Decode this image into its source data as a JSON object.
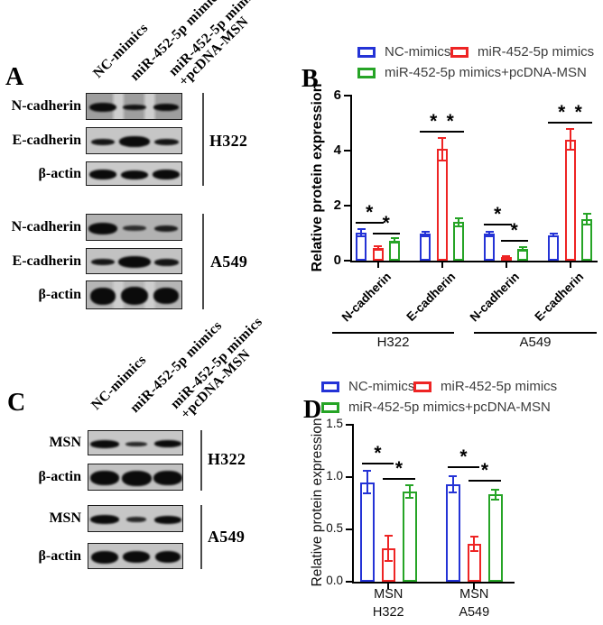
{
  "colors": {
    "nc_blue": "#2433d6",
    "mir_red": "#ee2424",
    "msn_green": "#26a426",
    "axis_black": "#000000",
    "legend_text_gray": "#3d3d3d"
  },
  "blot_panels": [
    {
      "letter": "A",
      "lane_labels": [
        "NC-mimics",
        "miR-452-5p mimics",
        "miR-452-5p mimics\n+pcDNA-MSN"
      ],
      "groups": [
        {
          "cell_line": "H322",
          "rows": [
            {
              "protein": "N-cadherin",
              "bg": "#9e9e9e",
              "streaks": true,
              "bands": [
                [
                  30,
                  10,
                  1
                ],
                [
                  26,
                  6,
                  0.95
                ],
                [
                  28,
                  8,
                  1
                ]
              ]
            },
            {
              "protein": "E-cadherin",
              "bg": "#c6c6c6",
              "streaks": false,
              "bands": [
                [
                  26,
                  7,
                  0.95
                ],
                [
                  34,
                  12,
                  1
                ],
                [
                  27,
                  7,
                  0.95
                ]
              ]
            },
            {
              "protein": "β-actin",
              "bg": "#cacaca",
              "streaks": false,
              "bands": [
                [
                  30,
                  11,
                  1
                ],
                [
                  30,
                  10,
                  1
                ],
                [
                  30,
                  11,
                  1
                ]
              ]
            }
          ]
        },
        {
          "cell_line": "A549",
          "rows": [
            {
              "protein": "N-cadherin",
              "bg": "#b2b2b2",
              "streaks": false,
              "bands": [
                [
                  32,
                  13,
                  1
                ],
                [
                  26,
                  6,
                  0.8
                ],
                [
                  26,
                  7,
                  0.9
                ]
              ]
            },
            {
              "protein": "E-cadherin",
              "bg": "#c2c2c2",
              "streaks": false,
              "bands": [
                [
                  26,
                  7,
                  0.95
                ],
                [
                  36,
                  13,
                  1
                ],
                [
                  27,
                  8,
                  0.95
                ]
              ]
            },
            {
              "protein": "β-actin",
              "bg": "#b6b6b6",
              "streaks": true,
              "bands": [
                [
                  28,
                  19,
                  1
                ],
                [
                  30,
                  20,
                  1
                ],
                [
                  28,
                  18,
                  1
                ]
              ]
            }
          ]
        }
      ]
    },
    {
      "letter": "C",
      "lane_labels": [
        "NC-mimics",
        "miR-452-5p mimics",
        "miR-452-5p mimics\n+pcDNA-MSN"
      ],
      "groups": [
        {
          "cell_line": "H322",
          "rows": [
            {
              "protein": "MSN",
              "bg": "#c6c6c6",
              "streaks": false,
              "bands": [
                [
                  32,
                  9,
                  1
                ],
                [
                  24,
                  5,
                  0.85
                ],
                [
                  30,
                  8,
                  1
                ]
              ]
            },
            {
              "protein": "β-actin",
              "bg": "#c2c2c2",
              "streaks": false,
              "bands": [
                [
                  32,
                  16,
                  1
                ],
                [
                  33,
                  17,
                  1
                ],
                [
                  32,
                  16,
                  1
                ]
              ]
            }
          ]
        },
        {
          "cell_line": "A549",
          "rows": [
            {
              "protein": "MSN",
              "bg": "#c6c6c6",
              "streaks": false,
              "bands": [
                [
                  32,
                  10,
                  1
                ],
                [
                  22,
                  6,
                  0.85
                ],
                [
                  30,
                  9,
                  1
                ]
              ]
            },
            {
              "protein": "β-actin",
              "bg": "#c4c4c4",
              "streaks": false,
              "bands": [
                [
                  30,
                  14,
                  1
                ],
                [
                  30,
                  13,
                  1
                ],
                [
                  28,
                  13,
                  1
                ]
              ]
            }
          ]
        }
      ]
    }
  ],
  "chart_data": [
    {
      "panel_letter": "B",
      "type": "bar",
      "title": "",
      "ylabel": "Relative protein expression",
      "ylim": [
        0,
        6
      ],
      "yticks": [
        0,
        2,
        4,
        6
      ],
      "ytick_labels": [
        "0",
        "2",
        "4",
        "6"
      ],
      "grid": false,
      "legend_position": "top",
      "categories": [
        "N-cadherin",
        "E-cadherin",
        "N-cadherin",
        "E-cadherin"
      ],
      "cell_line_groups": [
        {
          "label": "H322",
          "category_indexes": [
            0,
            1
          ]
        },
        {
          "label": "A549",
          "category_indexes": [
            2,
            3
          ]
        }
      ],
      "series": [
        {
          "name": "NC-mimics",
          "color": "#2433d6",
          "values": [
            1.03,
            0.97,
            0.97,
            0.93
          ],
          "errors": [
            0.13,
            0.08,
            0.07,
            0.05
          ]
        },
        {
          "name": "miR-452-5p mimics",
          "color": "#ee2424",
          "values": [
            0.45,
            4.05,
            0.13,
            4.4
          ],
          "errors": [
            0.06,
            0.4,
            0.05,
            0.38
          ]
        },
        {
          "name": "miR-452-5p mimics+pcDNA-MSN",
          "color": "#26a426",
          "values": [
            0.73,
            1.4,
            0.42,
            1.52
          ],
          "errors": [
            0.08,
            0.15,
            0.06,
            0.2
          ]
        }
      ],
      "significance": [
        {
          "group": 0,
          "bars": [
            0,
            1
          ],
          "y": 1.38,
          "symbol": "*"
        },
        {
          "group": 0,
          "bars": [
            1,
            2
          ],
          "y": 1.0,
          "symbol": "*"
        },
        {
          "group": 1,
          "bars": [
            0,
            1
          ],
          "y": 4.68,
          "symbol": "*"
        },
        {
          "group": 1,
          "bars": [
            1,
            2
          ],
          "y": 4.68,
          "symbol": "*"
        },
        {
          "group": 2,
          "bars": [
            0,
            1
          ],
          "y": 1.32,
          "symbol": "*"
        },
        {
          "group": 2,
          "bars": [
            1,
            2
          ],
          "y": 0.72,
          "symbol": "*"
        },
        {
          "group": 3,
          "bars": [
            0,
            1
          ],
          "y": 5.02,
          "symbol": "*"
        },
        {
          "group": 3,
          "bars": [
            1,
            2
          ],
          "y": 5.02,
          "symbol": "*"
        }
      ]
    },
    {
      "panel_letter": "D",
      "type": "bar",
      "title": "",
      "ylabel": "Relative protein expression",
      "ylim": [
        0,
        1.5
      ],
      "yticks": [
        0,
        0.5,
        1.0,
        1.5
      ],
      "ytick_labels": [
        "0.0",
        "0.5",
        "1.0",
        "1.5"
      ],
      "grid": false,
      "legend_position": "top",
      "categories": [
        "MSN",
        "MSN"
      ],
      "cell_line_groups": [
        {
          "label": "H322",
          "category_indexes": [
            0
          ]
        },
        {
          "label": "A549",
          "category_indexes": [
            1
          ]
        }
      ],
      "series": [
        {
          "name": "NC-mimics",
          "color": "#2433d6",
          "values": [
            0.95,
            0.93
          ],
          "errors": [
            0.11,
            0.08
          ]
        },
        {
          "name": "miR-452-5p mimics",
          "color": "#ee2424",
          "values": [
            0.32,
            0.36
          ],
          "errors": [
            0.12,
            0.07
          ]
        },
        {
          "name": "miR-452-5p mimics+pcDNA-MSN",
          "color": "#26a426",
          "values": [
            0.86,
            0.83
          ],
          "errors": [
            0.06,
            0.05
          ]
        }
      ],
      "significance": [
        {
          "group": 0,
          "bars": [
            0,
            1
          ],
          "y": 1.13,
          "symbol": "*"
        },
        {
          "group": 0,
          "bars": [
            1,
            2
          ],
          "y": 0.98,
          "symbol": "*"
        },
        {
          "group": 1,
          "bars": [
            0,
            1
          ],
          "y": 1.09,
          "symbol": "*"
        },
        {
          "group": 1,
          "bars": [
            1,
            2
          ],
          "y": 0.96,
          "symbol": "*"
        }
      ]
    }
  ]
}
